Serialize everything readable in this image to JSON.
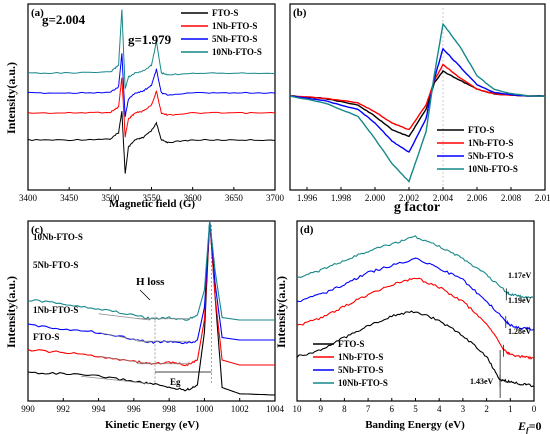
{
  "colors": {
    "FTO-S": "#000000",
    "1Nb-FTO-S": "#ff0000",
    "5Nb-FTO-S": "#0000ff",
    "10Nb-FTO-S": "#16888a"
  },
  "chart_data": [
    {
      "type": "line",
      "panel": "(a)",
      "xlabel": "Magnetic field (G)",
      "ylabel": "Intensity(a.u.)",
      "xlim": [
        3400,
        3700
      ],
      "xticks": [
        3400,
        3450,
        3500,
        3550,
        3600,
        3650,
        3700
      ],
      "legend_position": "top-right",
      "annotations": [
        "g=2.004",
        "g=1.979"
      ],
      "series": [
        {
          "name": "FTO-S",
          "offset": 0,
          "x": [
            3400,
            3450,
            3500,
            3510,
            3514,
            3518,
            3522,
            3530,
            3540,
            3550,
            3556,
            3562,
            3570,
            3600,
            3650,
            3700
          ],
          "y": [
            0,
            0,
            0.02,
            0.15,
            0.6,
            -0.7,
            -0.15,
            0,
            0.05,
            0.2,
            0.35,
            0,
            -0.05,
            0,
            0,
            0
          ]
        },
        {
          "name": "1Nb-FTO-S",
          "offset": 1,
          "x": [
            3400,
            3450,
            3500,
            3510,
            3514,
            3518,
            3522,
            3530,
            3540,
            3550,
            3556,
            3562,
            3570,
            3600,
            3650,
            3700
          ],
          "y": [
            0,
            0,
            0.02,
            0.15,
            0.9,
            -0.6,
            -0.15,
            0,
            0.05,
            0.2,
            0.55,
            0,
            -0.05,
            0,
            0,
            0
          ]
        },
        {
          "name": "5Nb-FTO-S",
          "offset": 2,
          "x": [
            3400,
            3450,
            3500,
            3510,
            3514,
            3518,
            3522,
            3530,
            3540,
            3550,
            3556,
            3562,
            3570,
            3600,
            3650,
            3700
          ],
          "y": [
            0,
            0,
            0.02,
            0.15,
            1.0,
            -0.6,
            -0.15,
            0,
            0.05,
            0.2,
            0.6,
            0,
            -0.05,
            0,
            0,
            0
          ]
        },
        {
          "name": "10Nb-FTO-S",
          "offset": 3,
          "x": [
            3400,
            3450,
            3500,
            3510,
            3514,
            3518,
            3522,
            3530,
            3540,
            3550,
            3556,
            3562,
            3570,
            3600,
            3650,
            3700
          ],
          "y": [
            0,
            0,
            0.02,
            0.2,
            1.6,
            -0.4,
            -0.1,
            0,
            0.05,
            0.2,
            0.8,
            0,
            -0.05,
            0,
            0,
            0
          ]
        }
      ]
    },
    {
      "type": "line",
      "panel": "(b)",
      "xlabel": "g factor",
      "ylabel": "",
      "xlim": [
        1.995,
        2.01
      ],
      "xticks": [
        "1.996",
        "1.998",
        "2.000",
        "2.002",
        "2.004",
        "2.006",
        "2.008",
        "2.010"
      ],
      "legend_position": "bottom-right",
      "series": [
        {
          "name": "FTO-S",
          "x": [
            1.995,
            1.997,
            1.999,
            2.0,
            2.001,
            2.002,
            2.003,
            2.0035,
            2.004,
            2.005,
            2.006,
            2.007,
            2.008,
            2.009,
            2.01
          ],
          "y": [
            0,
            -0.05,
            -0.2,
            -0.45,
            -0.75,
            -0.9,
            -0.3,
            0.3,
            0.55,
            0.35,
            0.15,
            0.05,
            0.02,
            0,
            0
          ]
        },
        {
          "name": "1Nb-FTO-S",
          "x": [
            1.995,
            1.997,
            1.999,
            2.0,
            2.001,
            2.002,
            2.003,
            2.0035,
            2.004,
            2.005,
            2.006,
            2.007,
            2.008,
            2.009,
            2.01
          ],
          "y": [
            0,
            -0.05,
            -0.15,
            -0.35,
            -0.6,
            -0.75,
            -0.2,
            0.35,
            0.7,
            0.4,
            0.15,
            0.05,
            0.02,
            0,
            0
          ]
        },
        {
          "name": "5Nb-FTO-S",
          "x": [
            1.995,
            1.997,
            1.999,
            2.0,
            2.001,
            2.002,
            2.003,
            2.0035,
            2.004,
            2.005,
            2.006,
            2.007,
            2.008,
            2.009,
            2.01
          ],
          "y": [
            0,
            -0.1,
            -0.3,
            -0.6,
            -1.0,
            -1.25,
            -0.5,
            0.4,
            1.05,
            0.65,
            0.25,
            0.08,
            0.03,
            0,
            0
          ]
        },
        {
          "name": "10Nb-FTO-S",
          "x": [
            1.995,
            1.997,
            1.999,
            2.0,
            2.001,
            2.002,
            2.003,
            2.0035,
            2.004,
            2.005,
            2.006,
            2.007,
            2.008,
            2.009,
            2.01
          ],
          "y": [
            0,
            -0.15,
            -0.45,
            -0.95,
            -1.5,
            -1.9,
            -0.8,
            0.5,
            1.6,
            1.1,
            0.45,
            0.15,
            0.05,
            0,
            0
          ]
        }
      ]
    },
    {
      "type": "line",
      "panel": "(c)",
      "xlabel": "Kinetic Energy (eV)",
      "ylabel": "Intensity(a.u.)",
      "xlim": [
        990,
        1004
      ],
      "xticks": [
        990,
        992,
        994,
        996,
        998,
        1000,
        1002,
        1004
      ],
      "legend_position": "left (labels next to curves)",
      "annotations": [
        "H loss",
        "Eg"
      ],
      "series": [
        {
          "name": "FTO-S",
          "x": [
            990,
            992,
            994,
            996,
            997,
            998,
            999,
            999.6,
            1000,
            1000.3,
            1000.6,
            1001,
            1002,
            1004
          ],
          "y": [
            0.9,
            0.85,
            0.75,
            0.55,
            0.45,
            0.3,
            0.2,
            0.4,
            2.5,
            7,
            4,
            0.3,
            0.05,
            0
          ]
        },
        {
          "name": "1Nb-FTO-S",
          "x": [
            990,
            992,
            994,
            996,
            997,
            998,
            999,
            999.6,
            1000,
            1000.3,
            1000.6,
            1001,
            1002,
            1004
          ],
          "y": [
            1.8,
            1.7,
            1.55,
            1.35,
            1.25,
            1.3,
            1.2,
            1.4,
            3,
            7,
            4,
            1.4,
            1.2,
            1.2
          ]
        },
        {
          "name": "5Nb-FTO-S",
          "x": [
            990,
            992,
            994,
            996,
            997,
            998,
            999,
            999.6,
            1000,
            1000.3,
            1000.6,
            1001,
            1002,
            1004
          ],
          "y": [
            2.8,
            2.65,
            2.5,
            2.25,
            2.1,
            2.15,
            2.05,
            2.2,
            3.5,
            7,
            4.5,
            2.3,
            2.2,
            2.2
          ]
        },
        {
          "name": "10Nb-FTO-S",
          "x": [
            990,
            992,
            994,
            996,
            997,
            998,
            999,
            999.6,
            1000,
            1000.3,
            1000.6,
            1001,
            1002,
            1004
          ],
          "y": [
            3.8,
            3.65,
            3.45,
            3.2,
            3.05,
            3.1,
            3.0,
            3.2,
            4.2,
            7,
            5,
            3.1,
            3.0,
            3.0
          ]
        }
      ]
    },
    {
      "type": "line",
      "panel": "(d)",
      "xlabel": "Banding Energy (eV)",
      "ylabel": "Intensity(a.u.)",
      "xlim": [
        10,
        0
      ],
      "xticks": [
        10,
        9,
        8,
        7,
        6,
        5,
        4,
        3,
        2,
        1,
        0
      ],
      "fermi_label": "E",
      "fermi_subscript": "f",
      "fermi_suffix": "=0",
      "legend_position": "bottom-left",
      "annotations": [
        "1.17eV",
        "1.19eV",
        "1.28eV",
        "1.43eV"
      ],
      "series": [
        {
          "name": "FTO-S",
          "x": [
            10,
            9,
            8,
            7,
            6,
            5,
            4,
            3,
            2,
            1.43,
            1,
            0.5,
            0
          ],
          "y": [
            1.3,
            1.6,
            2.1,
            2.6,
            3.0,
            3.2,
            2.8,
            2.2,
            1.3,
            0.35,
            0.25,
            0.15,
            0.1
          ]
        },
        {
          "name": "1Nb-FTO-S",
          "x": [
            10,
            9,
            8,
            7,
            6,
            5,
            4,
            3,
            2,
            1.28,
            1,
            0.5,
            0
          ],
          "y": [
            2.6,
            2.9,
            3.4,
            3.9,
            4.3,
            4.6,
            4.2,
            3.6,
            2.7,
            1.6,
            1.4,
            1.3,
            1.25
          ]
        },
        {
          "name": "5Nb-FTO-S",
          "x": [
            10,
            9,
            8,
            7,
            6,
            5,
            4,
            3,
            2,
            1.19,
            1,
            0.5,
            0
          ],
          "y": [
            3.6,
            3.9,
            4.3,
            4.8,
            5.1,
            5.4,
            5.0,
            4.5,
            3.6,
            2.8,
            2.6,
            2.5,
            2.45
          ]
        },
        {
          "name": "10Nb-FTO-S",
          "x": [
            10,
            9,
            8,
            7,
            6,
            5,
            4,
            3,
            2,
            1.17,
            1,
            0.5,
            0
          ],
          "y": [
            4.6,
            4.9,
            5.3,
            5.7,
            6.0,
            6.3,
            5.9,
            5.4,
            4.7,
            4.0,
            3.9,
            3.8,
            3.75
          ]
        }
      ]
    }
  ]
}
